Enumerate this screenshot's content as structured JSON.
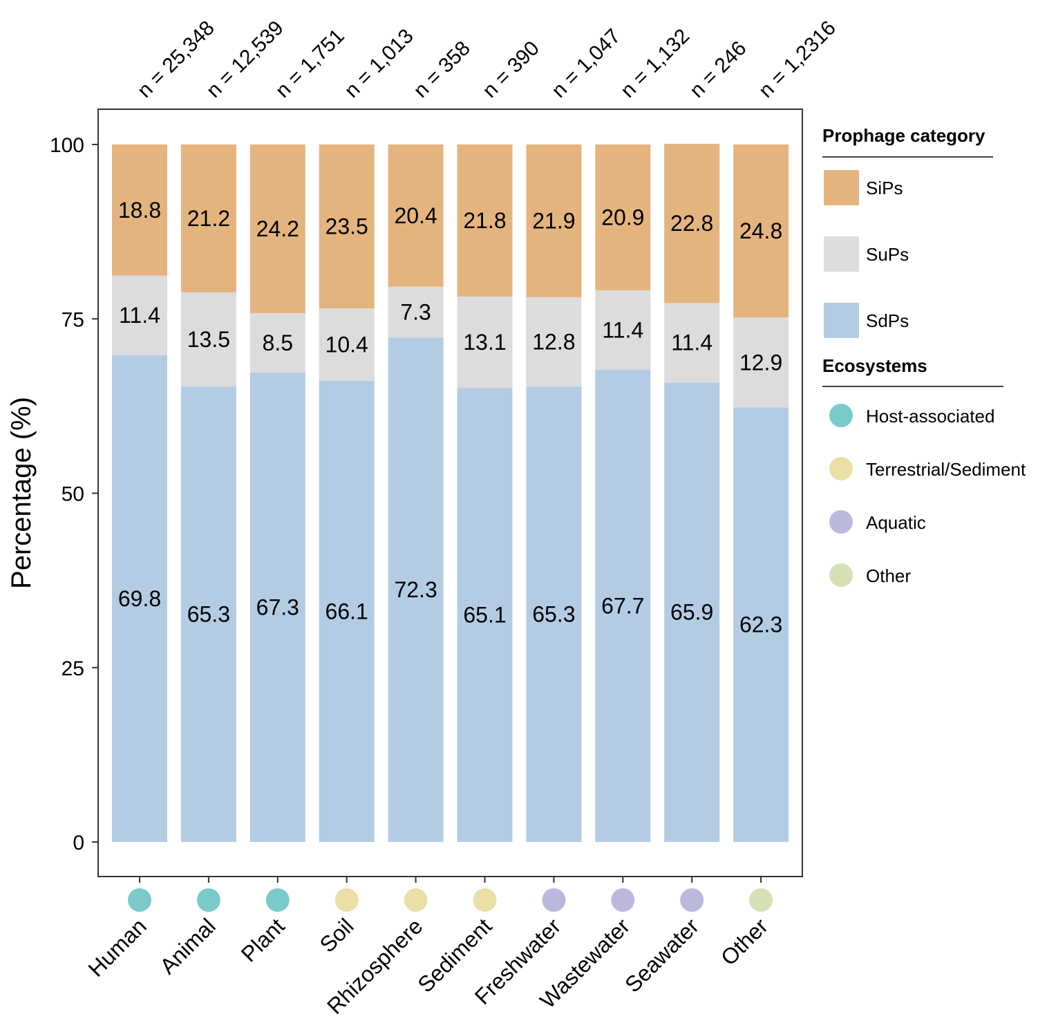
{
  "chart_data": {
    "type": "bar",
    "stacked": true,
    "title": "",
    "xlabel": "",
    "ylabel": "Percentage (%)",
    "ylim": [
      0,
      100
    ],
    "yticks": [
      0,
      25,
      50,
      75,
      100
    ],
    "categories": [
      "Human",
      "Animal",
      "Plant",
      "Soil",
      "Rhizosphere",
      "Sediment",
      "Freshwater",
      "Wastewater",
      "Seawater",
      "Other"
    ],
    "n_labels": [
      "n = 25,348",
      "n = 12,539",
      "n = 1,751",
      "n = 1,013",
      "n = 358",
      "n = 390",
      "n = 1,047",
      "n = 1,132",
      "n = 246",
      "n = 1,2316"
    ],
    "series": [
      {
        "name": "SdPs",
        "color": "#b3cce4",
        "values": [
          69.8,
          65.3,
          67.3,
          66.1,
          72.3,
          65.1,
          65.3,
          67.7,
          65.9,
          62.3
        ]
      },
      {
        "name": "SuPs",
        "color": "#dcdcdc",
        "values": [
          11.4,
          13.5,
          8.5,
          10.4,
          7.3,
          13.1,
          12.8,
          11.4,
          11.4,
          12.9
        ]
      },
      {
        "name": "SiPs",
        "color": "#e4b47f",
        "values": [
          18.8,
          21.2,
          24.2,
          23.5,
          20.4,
          21.8,
          21.9,
          20.9,
          22.8,
          24.8
        ]
      }
    ],
    "ecosystem_of_category": [
      "Host-associated",
      "Host-associated",
      "Host-associated",
      "Terrestrial/Sediment",
      "Terrestrial/Sediment",
      "Terrestrial/Sediment",
      "Aquatic",
      "Aquatic",
      "Aquatic",
      "Other"
    ],
    "legend": {
      "category_title": "Prophage category",
      "category_items": [
        {
          "name": "SiPs",
          "color": "#e4b47f"
        },
        {
          "name": "SuPs",
          "color": "#dcdcdc"
        },
        {
          "name": "SdPs",
          "color": "#b3cce4"
        }
      ],
      "ecosystem_title": "Ecosystems",
      "ecosystem_items": [
        {
          "name": "Host-associated",
          "color": "#7bcaca"
        },
        {
          "name": "Terrestrial/Sediment",
          "color": "#ebdfa8"
        },
        {
          "name": "Aquatic",
          "color": "#bbb8dd"
        },
        {
          "name": "Other",
          "color": "#d4e1b5"
        }
      ],
      "position": "right"
    }
  }
}
